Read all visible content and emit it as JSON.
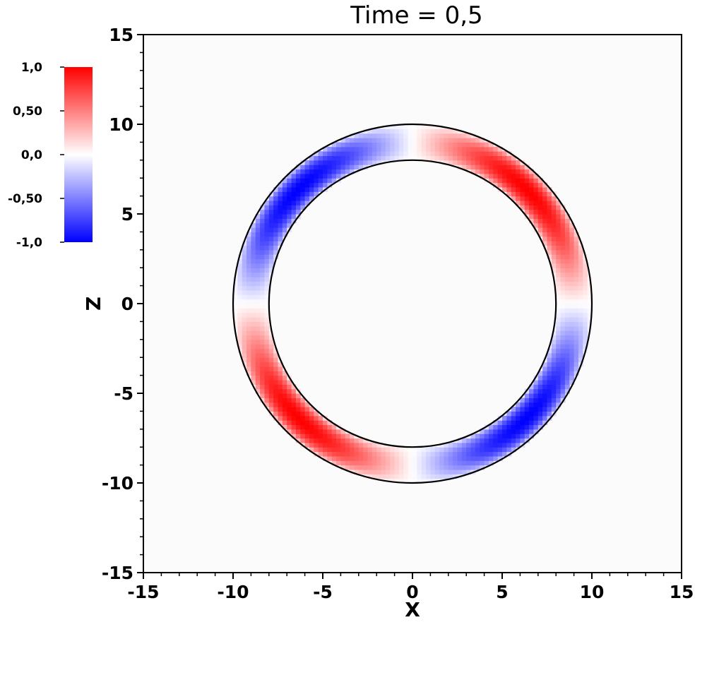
{
  "chart_data": {
    "type": "heatmap",
    "title": "Time = 0,5",
    "xlabel": "X",
    "ylabel": "Z",
    "xlim": [
      -15,
      15
    ],
    "ylim": [
      -15,
      15
    ],
    "x_ticks": [
      -15,
      -10,
      -5,
      0,
      5,
      10,
      15
    ],
    "y_ticks": [
      -15,
      -10,
      -5,
      0,
      5,
      10,
      15
    ],
    "x_tick_labels": [
      "-15",
      "-10",
      "-5",
      "0",
      "5",
      "10",
      "15"
    ],
    "y_tick_labels": [
      "-15",
      "-10",
      "-5",
      "0",
      "5",
      "10",
      "15"
    ],
    "field": {
      "shape": "annulus",
      "inner_radius": 8,
      "outer_radius": 10,
      "pattern": "sin(2*theta)",
      "quadrants": [
        {
          "name": "upper-right",
          "sign": "positive",
          "color": "red"
        },
        {
          "name": "upper-left",
          "sign": "negative",
          "color": "blue"
        },
        {
          "name": "lower-left",
          "sign": "positive",
          "color": "red"
        },
        {
          "name": "lower-right",
          "sign": "negative",
          "color": "blue"
        }
      ]
    },
    "colorbar": {
      "range": [
        -1.0,
        1.0
      ],
      "tick_values": [
        1.0,
        0.5,
        0.0,
        -0.5,
        -1.0
      ],
      "tick_labels": [
        "1,0",
        "0,50",
        "0,0",
        "-0,50",
        "-1,0"
      ],
      "colors": {
        "high": "#ff0000",
        "mid": "#ffffff",
        "low": "#0000ff"
      }
    },
    "colors": {
      "background": "#fcfbfc",
      "boundary": "#000000"
    },
    "grid": false,
    "legend": "colorbar top-left"
  }
}
